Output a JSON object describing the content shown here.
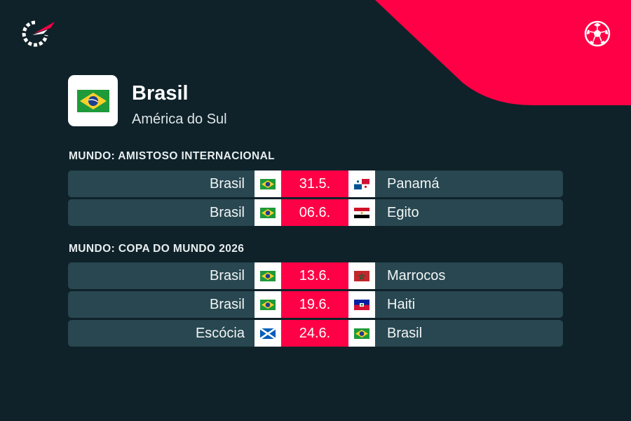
{
  "colors": {
    "background": "#0f2229",
    "row_background": "#284750",
    "accent": "#ff0046",
    "flag_cell": "#ffffff"
  },
  "header": {
    "logo": "flashscore-logo-icon",
    "right_icon": "football-icon"
  },
  "team": {
    "name": "Brasil",
    "region": "América do Sul",
    "flag": "brazil-flag-icon"
  },
  "sections": [
    {
      "title": "MUNDO: AMISTOSO INTERNACIONAL",
      "matches": [
        {
          "home": "Brasil",
          "home_flag": "brazil-flag-icon",
          "date": "31.5.",
          "away": "Panamá",
          "away_flag": "panama-flag-icon"
        },
        {
          "home": "Brasil",
          "home_flag": "brazil-flag-icon",
          "date": "06.6.",
          "away": "Egito",
          "away_flag": "egypt-flag-icon"
        }
      ]
    },
    {
      "title": "MUNDO: COPA DO MUNDO 2026",
      "matches": [
        {
          "home": "Brasil",
          "home_flag": "brazil-flag-icon",
          "date": "13.6.",
          "away": "Marrocos",
          "away_flag": "morocco-flag-icon"
        },
        {
          "home": "Brasil",
          "home_flag": "brazil-flag-icon",
          "date": "19.6.",
          "away": "Haiti",
          "away_flag": "haiti-flag-icon"
        },
        {
          "home": "Escócia",
          "home_flag": "scotland-flag-icon",
          "date": "24.6.",
          "away": "Brasil",
          "away_flag": "brazil-flag-icon"
        }
      ]
    }
  ]
}
